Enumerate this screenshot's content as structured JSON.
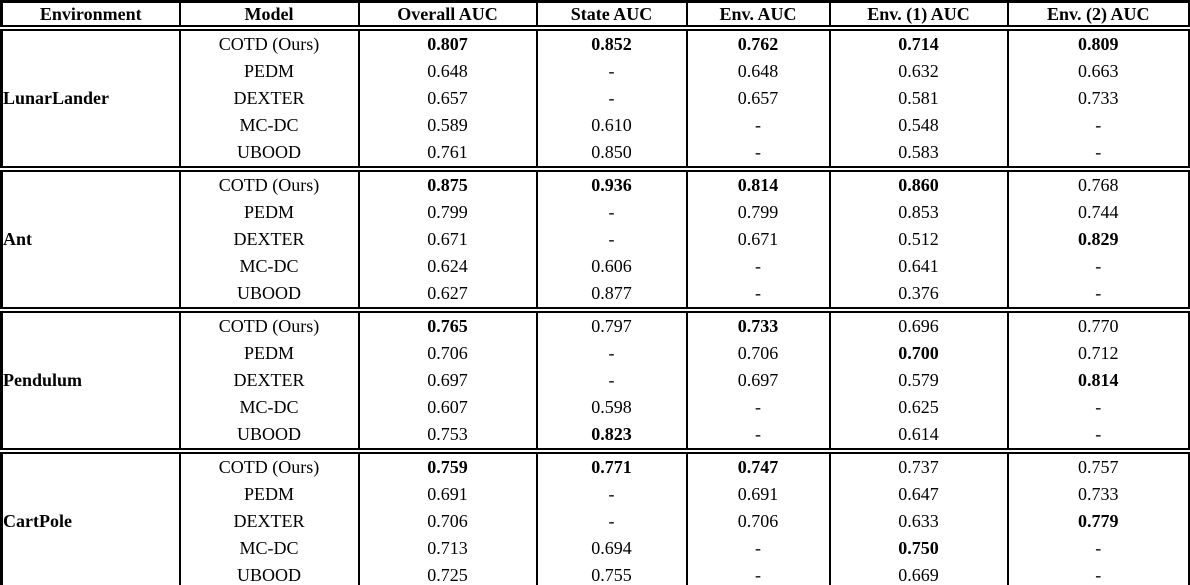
{
  "table": {
    "columns": [
      "Environment",
      "Model",
      "Overall AUC",
      "State AUC",
      "Env. AUC",
      "Env. (1) AUC",
      "Env. (2) AUC"
    ],
    "sections": [
      {
        "environment": "LunarLander",
        "rows": [
          {
            "model": "COTD (Ours)",
            "values": [
              {
                "v": "0.807",
                "b": true
              },
              {
                "v": "0.852",
                "b": true
              },
              {
                "v": "0.762",
                "b": true
              },
              {
                "v": "0.714",
                "b": true
              },
              {
                "v": "0.809",
                "b": true
              }
            ]
          },
          {
            "model": "PEDM",
            "values": [
              {
                "v": "0.648",
                "b": false
              },
              {
                "v": "-",
                "b": false
              },
              {
                "v": "0.648",
                "b": false
              },
              {
                "v": "0.632",
                "b": false
              },
              {
                "v": "0.663",
                "b": false
              }
            ]
          },
          {
            "model": "DEXTER",
            "values": [
              {
                "v": "0.657",
                "b": false
              },
              {
                "v": "-",
                "b": false
              },
              {
                "v": "0.657",
                "b": false
              },
              {
                "v": "0.581",
                "b": false
              },
              {
                "v": "0.733",
                "b": false
              }
            ]
          },
          {
            "model": "MC-DC",
            "values": [
              {
                "v": "0.589",
                "b": false
              },
              {
                "v": "0.610",
                "b": false
              },
              {
                "v": "-",
                "b": false
              },
              {
                "v": "0.548",
                "b": false
              },
              {
                "v": "-",
                "b": false
              }
            ]
          },
          {
            "model": "UBOOD",
            "values": [
              {
                "v": "0.761",
                "b": false
              },
              {
                "v": "0.850",
                "b": false
              },
              {
                "v": "-",
                "b": false
              },
              {
                "v": "0.583",
                "b": false
              },
              {
                "v": "-",
                "b": false
              }
            ]
          }
        ]
      },
      {
        "environment": "Ant",
        "rows": [
          {
            "model": "COTD (Ours)",
            "values": [
              {
                "v": "0.875",
                "b": true
              },
              {
                "v": "0.936",
                "b": true
              },
              {
                "v": "0.814",
                "b": true
              },
              {
                "v": "0.860",
                "b": true
              },
              {
                "v": "0.768",
                "b": false
              }
            ]
          },
          {
            "model": "PEDM",
            "values": [
              {
                "v": "0.799",
                "b": false
              },
              {
                "v": "-",
                "b": false
              },
              {
                "v": "0.799",
                "b": false
              },
              {
                "v": "0.853",
                "b": false
              },
              {
                "v": "0.744",
                "b": false
              }
            ]
          },
          {
            "model": "DEXTER",
            "values": [
              {
                "v": "0.671",
                "b": false
              },
              {
                "v": "-",
                "b": false
              },
              {
                "v": "0.671",
                "b": false
              },
              {
                "v": "0.512",
                "b": false
              },
              {
                "v": "0.829",
                "b": true
              }
            ]
          },
          {
            "model": "MC-DC",
            "values": [
              {
                "v": "0.624",
                "b": false
              },
              {
                "v": "0.606",
                "b": false
              },
              {
                "v": "-",
                "b": false
              },
              {
                "v": "0.641",
                "b": false
              },
              {
                "v": "-",
                "b": false
              }
            ]
          },
          {
            "model": "UBOOD",
            "values": [
              {
                "v": "0.627",
                "b": false
              },
              {
                "v": "0.877",
                "b": false
              },
              {
                "v": "-",
                "b": false
              },
              {
                "v": "0.376",
                "b": false
              },
              {
                "v": "-",
                "b": false
              }
            ]
          }
        ]
      },
      {
        "environment": "Pendulum",
        "rows": [
          {
            "model": "COTD (Ours)",
            "values": [
              {
                "v": "0.765",
                "b": true
              },
              {
                "v": "0.797",
                "b": false
              },
              {
                "v": "0.733",
                "b": true
              },
              {
                "v": "0.696",
                "b": false
              },
              {
                "v": "0.770",
                "b": false
              }
            ]
          },
          {
            "model": "PEDM",
            "values": [
              {
                "v": "0.706",
                "b": false
              },
              {
                "v": "-",
                "b": false
              },
              {
                "v": "0.706",
                "b": false
              },
              {
                "v": "0.700",
                "b": true
              },
              {
                "v": "0.712",
                "b": false
              }
            ]
          },
          {
            "model": "DEXTER",
            "values": [
              {
                "v": "0.697",
                "b": false
              },
              {
                "v": "-",
                "b": false
              },
              {
                "v": "0.697",
                "b": false
              },
              {
                "v": "0.579",
                "b": false
              },
              {
                "v": "0.814",
                "b": true
              }
            ]
          },
          {
            "model": "MC-DC",
            "values": [
              {
                "v": "0.607",
                "b": false
              },
              {
                "v": "0.598",
                "b": false
              },
              {
                "v": "-",
                "b": false
              },
              {
                "v": "0.625",
                "b": false
              },
              {
                "v": "-",
                "b": false
              }
            ]
          },
          {
            "model": "UBOOD",
            "values": [
              {
                "v": "0.753",
                "b": false
              },
              {
                "v": "0.823",
                "b": true
              },
              {
                "v": "-",
                "b": false
              },
              {
                "v": "0.614",
                "b": false
              },
              {
                "v": "-",
                "b": false
              }
            ]
          }
        ]
      },
      {
        "environment": "CartPole",
        "rows": [
          {
            "model": "COTD (Ours)",
            "values": [
              {
                "v": "0.759",
                "b": true
              },
              {
                "v": "0.771",
                "b": true
              },
              {
                "v": "0.747",
                "b": true
              },
              {
                "v": "0.737",
                "b": false
              },
              {
                "v": "0.757",
                "b": false
              }
            ]
          },
          {
            "model": "PEDM",
            "values": [
              {
                "v": "0.691",
                "b": false
              },
              {
                "v": "-",
                "b": false
              },
              {
                "v": "0.691",
                "b": false
              },
              {
                "v": "0.647",
                "b": false
              },
              {
                "v": "0.733",
                "b": false
              }
            ]
          },
          {
            "model": "DEXTER",
            "values": [
              {
                "v": "0.706",
                "b": false
              },
              {
                "v": "-",
                "b": false
              },
              {
                "v": "0.706",
                "b": false
              },
              {
                "v": "0.633",
                "b": false
              },
              {
                "v": "0.779",
                "b": true
              }
            ]
          },
          {
            "model": "MC-DC",
            "values": [
              {
                "v": "0.713",
                "b": false
              },
              {
                "v": "0.694",
                "b": false
              },
              {
                "v": "-",
                "b": false
              },
              {
                "v": "0.750",
                "b": true
              },
              {
                "v": "-",
                "b": false
              }
            ]
          },
          {
            "model": "UBOOD",
            "values": [
              {
                "v": "0.725",
                "b": false
              },
              {
                "v": "0.755",
                "b": false
              },
              {
                "v": "-",
                "b": false
              },
              {
                "v": "0.669",
                "b": false
              },
              {
                "v": "-",
                "b": false
              }
            ]
          }
        ]
      }
    ]
  }
}
